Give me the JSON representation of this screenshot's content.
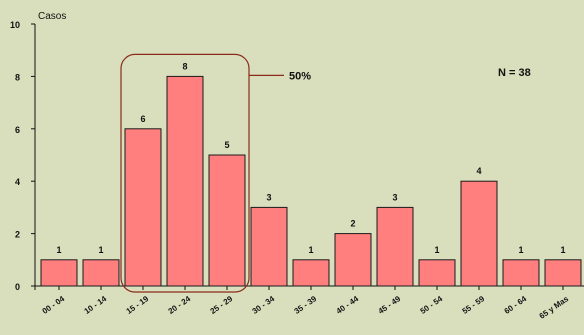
{
  "chart_data": {
    "type": "bar",
    "ylabel": "Casos",
    "ylim": [
      0,
      10
    ],
    "yticks": [
      0,
      2,
      4,
      6,
      8,
      10
    ],
    "categories": [
      "00 - 04",
      "10 - 14",
      "15 - 19",
      "20 - 24",
      "25 - 29",
      "30 - 34",
      "35 - 39",
      "40 - 44",
      "45 - 49",
      "50 - 54",
      "55 - 59",
      "60 - 64",
      "65 y Mas"
    ],
    "values": [
      1,
      1,
      6,
      8,
      5,
      3,
      1,
      2,
      3,
      1,
      4,
      1,
      1
    ],
    "annotations": {
      "total": "N = 38",
      "highlight_label": "50%",
      "highlight_categories": [
        "15 - 19",
        "20 - 24",
        "25 - 29"
      ]
    },
    "grid": false,
    "legend": "none"
  },
  "colors": {
    "background": "#d9dfbd",
    "bar_fill": "#ff7f7f",
    "bar_stroke": "#1a1a1a",
    "highlight_box": "#8b2a1a",
    "text": "#111111"
  }
}
